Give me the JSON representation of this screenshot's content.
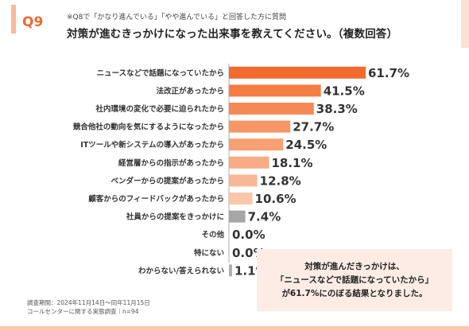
{
  "header": {
    "question_number": "Q9",
    "note": "※Q8で「かなり進んでいる」「やや進んでいる」と回答した方に質問",
    "title": "対策が進むきっかけになった出来事を教えてください。（複数回答）"
  },
  "chart_data": {
    "type": "bar",
    "orientation": "horizontal",
    "categories": [
      "ニュースなどで話題になっていたから",
      "法改正があったから",
      "社内環境の変化で必要に迫られたから",
      "競合他社の動向を気にするようになったから",
      "ITツールや新システムの導入があったから",
      "経営層からの指示があったから",
      "ベンダーからの提案があったから",
      "顧客からのフィードバックがあったから",
      "社員からの提案をきっかけに",
      "その他",
      "特にない",
      "わからない/答えられない"
    ],
    "values": [
      61.7,
      41.5,
      38.3,
      27.7,
      24.5,
      18.1,
      12.8,
      10.6,
      7.4,
      0.0,
      0.0,
      1.1
    ],
    "value_labels": [
      "61.7%",
      "41.5%",
      "38.3%",
      "27.7%",
      "24.5%",
      "18.1%",
      "12.8%",
      "10.6%",
      "7.4%",
      "0.0%",
      "0.0%",
      "1.1%"
    ],
    "xlim": [
      0,
      100
    ],
    "grid": false,
    "colors": [
      "#f26b2e",
      "#f47d43",
      "#f58955",
      "#f69565",
      "#f7a074",
      "#f8ab84",
      "#f9b895",
      "#fac6a8",
      "#a6a6a6",
      "#b0b0b0",
      "#b0b0b0",
      "#b0b0b0"
    ]
  },
  "callout": {
    "line1": "対策が進んだきっかけは、",
    "line2": "「ニュースなどで話題になっていたから」",
    "line3": "が61.7%にのぼる結果となりました。"
  },
  "survey": {
    "period": "調査期間：2024年11月14日〜同年11月15日",
    "name": "コールセンターに関する実態調査｜n=94"
  }
}
